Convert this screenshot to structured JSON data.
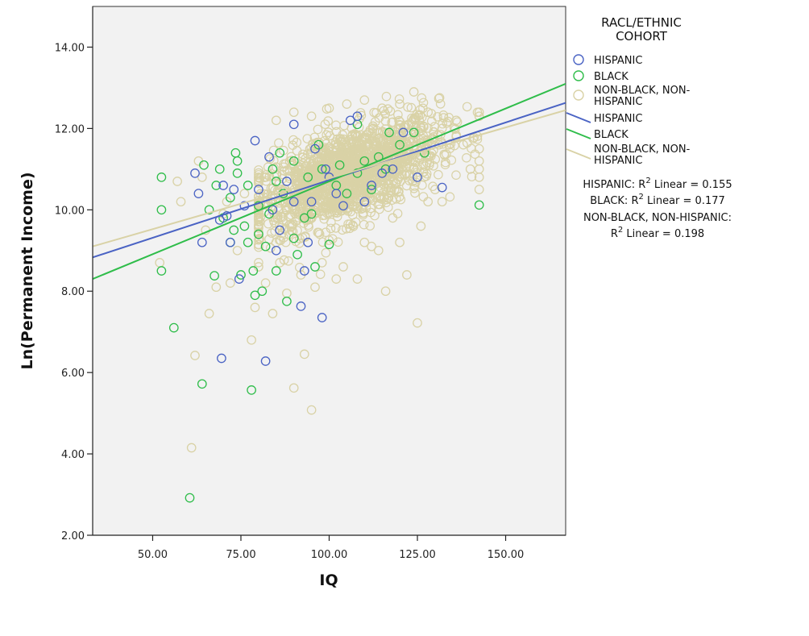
{
  "chart_data": {
    "type": "scatter",
    "xlabel": "IQ",
    "ylabel": "Ln(Permanent Income)",
    "xlim": [
      33,
      167
    ],
    "ylim": [
      2,
      15
    ],
    "x_ticks": [
      50,
      75,
      100,
      125,
      150
    ],
    "y_ticks": [
      2,
      4,
      6,
      8,
      10,
      12,
      14
    ],
    "x_tick_labels": [
      "50.00",
      "75.00",
      "100.00",
      "125.00",
      "150.00"
    ],
    "y_tick_labels": [
      "2.00",
      "4.00",
      "6.00",
      "8.00",
      "10.00",
      "12.00",
      "14.00"
    ],
    "grid": false,
    "legend_position": "right",
    "legend_title": "RACL/ETHNIC\nCOHORT",
    "series": [
      {
        "name": "HISPANIC",
        "color": "#4a63c4",
        "points": [
          [
            62,
            10.9
          ],
          [
            63,
            10.4
          ],
          [
            64,
            9.2
          ],
          [
            69,
            9.75
          ],
          [
            69.5,
            6.35
          ],
          [
            70,
            10.6
          ],
          [
            71,
            9.85
          ],
          [
            72,
            9.2
          ],
          [
            73,
            10.5
          ],
          [
            74.5,
            8.3
          ],
          [
            76,
            10.1
          ],
          [
            79,
            11.7
          ],
          [
            80,
            10.5
          ],
          [
            82,
            6.28
          ],
          [
            83,
            11.3
          ],
          [
            84,
            10.0
          ],
          [
            86,
            9.5
          ],
          [
            90,
            12.1
          ],
          [
            92,
            7.63
          ],
          [
            93,
            8.5
          ],
          [
            94,
            9.2
          ],
          [
            95,
            10.2
          ],
          [
            98,
            7.35
          ],
          [
            99,
            11.0
          ],
          [
            100,
            10.8
          ],
          [
            104,
            10.1
          ],
          [
            106,
            12.2
          ],
          [
            108,
            12.3
          ],
          [
            110,
            10.2
          ],
          [
            112,
            10.6
          ],
          [
            115,
            10.9
          ],
          [
            118,
            11.0
          ],
          [
            121,
            11.9
          ],
          [
            125,
            10.8
          ],
          [
            132,
            10.55
          ],
          [
            88,
            10.7
          ],
          [
            96,
            11.5
          ],
          [
            102,
            10.4
          ],
          [
            85,
            9.0
          ],
          [
            90,
            10.2
          ]
        ]
      },
      {
        "name": "BLACK",
        "color": "#2fbd4a",
        "points": [
          [
            52.5,
            10.8
          ],
          [
            52.5,
            10.0
          ],
          [
            52.5,
            8.5
          ],
          [
            56,
            7.1
          ],
          [
            60.5,
            2.92
          ],
          [
            64,
            5.72
          ],
          [
            64.5,
            11.1
          ],
          [
            66,
            10.0
          ],
          [
            67.5,
            8.38
          ],
          [
            68,
            10.6
          ],
          [
            69,
            11.0
          ],
          [
            70,
            9.8
          ],
          [
            72,
            10.3
          ],
          [
            72,
            9.2
          ],
          [
            73,
            9.5
          ],
          [
            73.5,
            11.4
          ],
          [
            74,
            10.9
          ],
          [
            75,
            8.4
          ],
          [
            76,
            9.6
          ],
          [
            77,
            9.2
          ],
          [
            78,
            5.57
          ],
          [
            78.5,
            8.5
          ],
          [
            79,
            7.9
          ],
          [
            80,
            10.1
          ],
          [
            81,
            8.0
          ],
          [
            82,
            9.1
          ],
          [
            83,
            9.9
          ],
          [
            84,
            11.0
          ],
          [
            85,
            8.5
          ],
          [
            86,
            11.4
          ],
          [
            87,
            10.4
          ],
          [
            88,
            7.75
          ],
          [
            90,
            9.3
          ],
          [
            91,
            8.9
          ],
          [
            93,
            9.8
          ],
          [
            94,
            10.8
          ],
          [
            96,
            8.6
          ],
          [
            97,
            11.6
          ],
          [
            100,
            9.15
          ],
          [
            103,
            11.1
          ],
          [
            105,
            10.4
          ],
          [
            108,
            12.1
          ],
          [
            110,
            11.2
          ],
          [
            114,
            11.3
          ],
          [
            117,
            11.9
          ],
          [
            120,
            11.6
          ],
          [
            124,
            11.9
          ],
          [
            127,
            11.4
          ],
          [
            142.5,
            10.12
          ],
          [
            74,
            11.2
          ],
          [
            77,
            10.6
          ],
          [
            80,
            9.4
          ],
          [
            85,
            10.7
          ],
          [
            90,
            11.2
          ],
          [
            95,
            9.9
          ],
          [
            98,
            11.0
          ],
          [
            102,
            10.6
          ],
          [
            108,
            10.9
          ],
          [
            112,
            10.5
          ],
          [
            116,
            11.0
          ]
        ]
      },
      {
        "name": "NON-BLACK, NON-HISPANIC",
        "color": "#d9d2a6",
        "points": [
          [
            52,
            8.7
          ],
          [
            57,
            10.7
          ],
          [
            58,
            10.2
          ],
          [
            61,
            4.15
          ],
          [
            62,
            6.42
          ],
          [
            63,
            11.2
          ],
          [
            64,
            10.8
          ],
          [
            65,
            9.5
          ],
          [
            66,
            7.45
          ],
          [
            68,
            8.1
          ],
          [
            70,
            9.9
          ],
          [
            71,
            10.2
          ],
          [
            72,
            8.2
          ],
          [
            74,
            9.0
          ],
          [
            76,
            10.4
          ],
          [
            78,
            6.8
          ],
          [
            79,
            7.6
          ],
          [
            80,
            8.6
          ],
          [
            82,
            8.2
          ],
          [
            84,
            7.45
          ],
          [
            86,
            8.7
          ],
          [
            88,
            7.95
          ],
          [
            90,
            5.62
          ],
          [
            92,
            8.4
          ],
          [
            93,
            6.45
          ],
          [
            95,
            5.08
          ],
          [
            96,
            8.1
          ],
          [
            98,
            8.7
          ],
          [
            102,
            8.3
          ],
          [
            104,
            8.6
          ],
          [
            108,
            8.3
          ],
          [
            110,
            9.2
          ],
          [
            112,
            9.1
          ],
          [
            114,
            9.0
          ],
          [
            116,
            8.0
          ],
          [
            118,
            9.8
          ],
          [
            120,
            9.2
          ],
          [
            122,
            8.4
          ],
          [
            125,
            7.22
          ],
          [
            126,
            9.6
          ],
          [
            128,
            10.2
          ],
          [
            130,
            10.5
          ],
          [
            132,
            10.2
          ],
          [
            134,
            11.6
          ],
          [
            136,
            11.8
          ],
          [
            138,
            11.6
          ],
          [
            140,
            11.0
          ],
          [
            142.5,
            12.4
          ],
          [
            142.5,
            12.3
          ],
          [
            142.5,
            11.5
          ],
          [
            142.5,
            11.2
          ],
          [
            142.5,
            11.0
          ],
          [
            142.5,
            10.8
          ],
          [
            142.5,
            10.5
          ],
          [
            85,
            12.2
          ],
          [
            90,
            12.4
          ],
          [
            95,
            12.3
          ],
          [
            100,
            12.5
          ],
          [
            105,
            12.6
          ],
          [
            110,
            12.7
          ],
          [
            115,
            12.5
          ],
          [
            120,
            12.6
          ],
          [
            124,
            12.9
          ],
          [
            128,
            12.4
          ],
          [
            132,
            12.0
          ],
          [
            136,
            12.2
          ]
        ]
      }
    ],
    "fit_lines": [
      {
        "name": "HISPANIC",
        "color": "#4a63c4",
        "x": [
          33,
          167
        ],
        "y": [
          8.83,
          12.63
        ]
      },
      {
        "name": "BLACK",
        "color": "#2fbd4a",
        "x": [
          33,
          167
        ],
        "y": [
          8.3,
          13.1
        ]
      },
      {
        "name": "NON-BLACK, NON-HISPANIC",
        "color": "#d9d2a6",
        "x": [
          33,
          167
        ],
        "y": [
          9.1,
          12.45
        ]
      }
    ],
    "cloud": {
      "series": "NON-BLACK, NON-HISPANIC",
      "count": 1600,
      "iq_mean": 105,
      "iq_sd": 13,
      "iq_min": 80,
      "iq_max": 142,
      "intercept": 7.7,
      "slope": 0.03,
      "residual_sd": 0.55
    },
    "legend_entries": [
      "HISPANIC",
      "BLACK",
      "NON-BLACK, NON-HISPANIC"
    ],
    "fit_legend_entries": [
      "HISPANIC",
      "BLACK",
      "NON-BLACK, NON-HISPANIC"
    ],
    "r2_annotations": [
      [
        "HISPANIC: R",
        "2",
        " Linear = 0.155"
      ],
      [
        "BLACK: R",
        "2",
        " Linear = 0.177"
      ],
      [
        "NON-BLACK, NON-HISPANIC:"
      ],
      [
        "R",
        "2",
        " Linear = 0.198"
      ]
    ]
  }
}
